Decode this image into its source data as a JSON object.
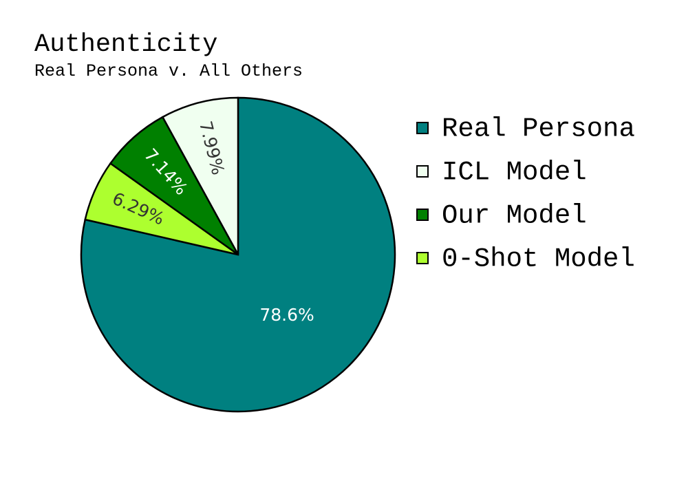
{
  "chart_data": {
    "type": "pie",
    "title": "Authenticity",
    "subtitle": "Real Persona v. All Others",
    "categories": [
      "Real Persona",
      "ICL Model",
      "Our Model",
      "0-Shot Model"
    ],
    "values": [
      78.6,
      7.99,
      7.14,
      6.29
    ],
    "value_labels": [
      "78.6%",
      "7.99%",
      "7.14%",
      "6.29%"
    ],
    "colors": [
      "#008080",
      "#f0fff0",
      "#008000",
      "#adff2f"
    ]
  }
}
